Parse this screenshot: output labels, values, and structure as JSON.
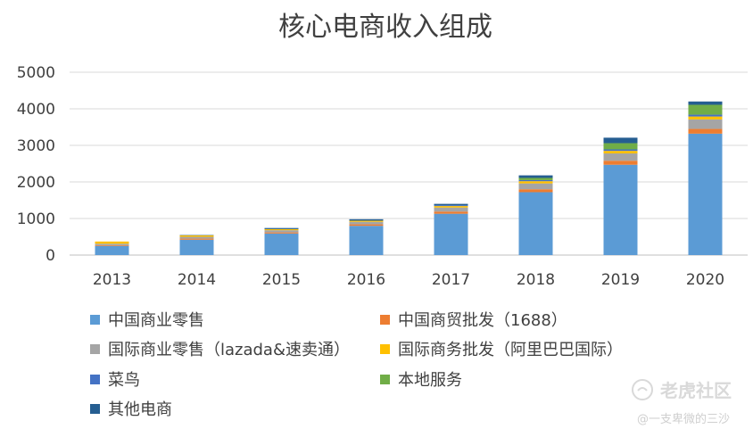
{
  "chart_data": {
    "type": "bar",
    "stacked": true,
    "title": "核心电商收入组成",
    "categories": [
      "2013",
      "2014",
      "2015",
      "2016",
      "2017",
      "2018",
      "2019",
      "2020"
    ],
    "ylim": [
      0,
      5000
    ],
    "yticks": [
      0,
      1000,
      2000,
      3000,
      4000,
      5000
    ],
    "grid": true,
    "legend_position": "bottom",
    "series": [
      {
        "name": "中国商业零售",
        "color": "#5B9BD5",
        "values": [
          250,
          420,
          590,
          800,
          1130,
          1720,
          2470,
          3320
        ]
      },
      {
        "name": "中国商贸批发（1688）",
        "color": "#ED7D31",
        "values": [
          20,
          30,
          30,
          40,
          60,
          80,
          110,
          130
        ]
      },
      {
        "name": "国际商业零售（lazada&速卖通）",
        "color": "#A5A5A5",
        "values": [
          40,
          50,
          60,
          70,
          110,
          160,
          200,
          260
        ]
      },
      {
        "name": "国际商务批发（阿里巴巴国际）",
        "color": "#FFC000",
        "values": [
          60,
          40,
          30,
          30,
          40,
          60,
          70,
          80
        ]
      },
      {
        "name": "菜鸟",
        "color": "#4472C4",
        "values": [
          0,
          0,
          0,
          0,
          20,
          30,
          40,
          50
        ]
      },
      {
        "name": "本地服务",
        "color": "#70AD47",
        "values": [
          0,
          0,
          0,
          0,
          0,
          60,
          170,
          270
        ]
      },
      {
        "name": "其他电商",
        "color": "#255E91",
        "values": [
          0,
          10,
          30,
          40,
          40,
          70,
          150,
          90
        ]
      }
    ]
  },
  "watermark": {
    "brand": "老虎社区",
    "author": "@一支卑微的三沙"
  }
}
